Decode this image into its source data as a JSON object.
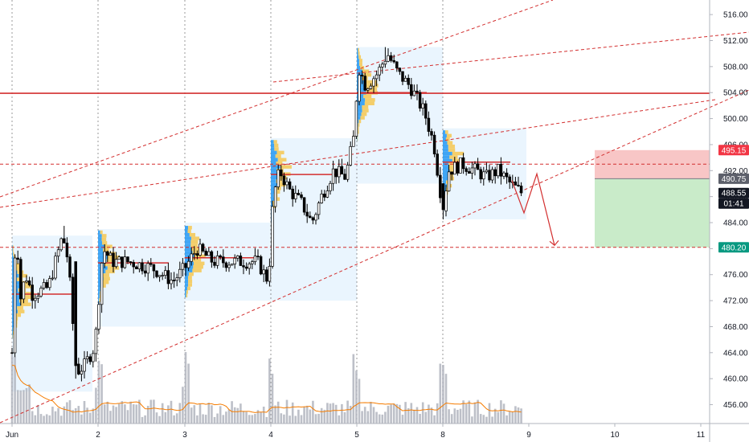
{
  "chart_data": {
    "type": "candlestick",
    "x_ticks": [
      "Jun",
      "2",
      "3",
      "4",
      "5",
      "8",
      "9",
      "10",
      "11"
    ],
    "y_ticks": [
      456.0,
      460.0,
      464.0,
      468.0,
      472.0,
      476.0,
      480.0,
      484.0,
      488.0,
      492.0,
      496.0,
      500.0,
      504.0,
      508.0,
      512.0,
      516.0
    ],
    "ylim": [
      453.5,
      517.5
    ],
    "price_tags": [
      {
        "label": "495.15",
        "value": 495.15,
        "kind": "stop",
        "color": "#f23645"
      },
      {
        "label": "490.75",
        "value": 490.75,
        "kind": "entry",
        "color": "#5d606b"
      },
      {
        "label": "488.55",
        "value": 488.55,
        "kind": "last",
        "color": "#131722"
      },
      {
        "label": "01:41",
        "value": 486.9,
        "kind": "countdown",
        "color": "#131722"
      },
      {
        "label": "480.20",
        "value": 480.2,
        "kind": "target",
        "color": "#089981"
      }
    ],
    "horizontal_levels": [
      {
        "value": 503.9,
        "style": "solid",
        "color": "#d32f2f"
      },
      {
        "value": 493.0,
        "style": "dashed",
        "color": "#d32f2f"
      },
      {
        "value": 480.2,
        "style": "dashed",
        "color": "#d32f2f"
      }
    ],
    "sessions": [
      {
        "day": "Jun",
        "poc": 473.0
      },
      {
        "day": "2",
        "poc": 477.8
      },
      {
        "day": "3",
        "poc": 478.6
      },
      {
        "day": "4",
        "poc": 491.4
      },
      {
        "day": "5",
        "poc": 504.0
      },
      {
        "day": "8",
        "poc": 493.3
      }
    ],
    "colors": {
      "up": "#ffffff",
      "down": "#000000",
      "wick": "#000000",
      "level": "#d32f2f",
      "volume": "#b2b5be",
      "volume_ma": "#f57c00",
      "profile_blue": "#2196f3",
      "profile_yellow": "#f6c445",
      "session_box": "#e3f2fd",
      "stop_zone": "#f8c6c6",
      "target_zone": "#c9ebc9"
    }
  }
}
